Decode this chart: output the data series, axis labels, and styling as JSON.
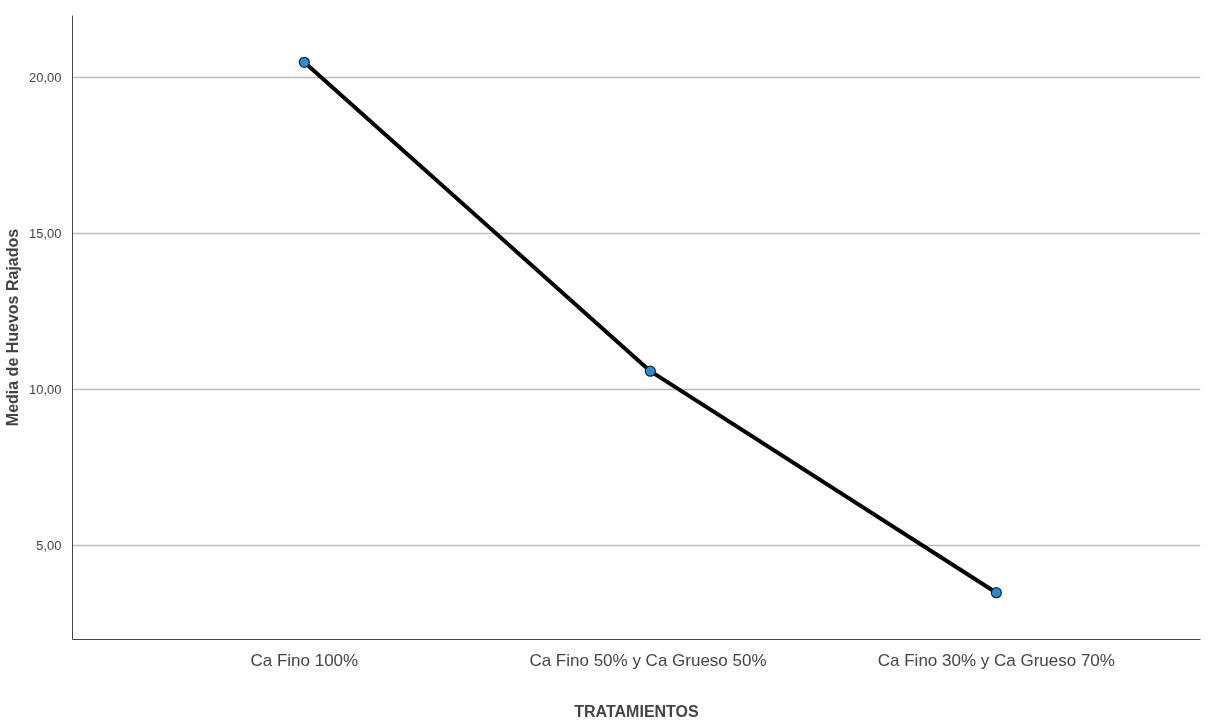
{
  "chart_data": {
    "type": "line",
    "xlabel": "TRATAMIENTOS",
    "ylabel": "Media de Huevos Rajados",
    "categories": [
      "Ca Fino 100%",
      "Ca Fino 50% y  Ca Grueso 50%",
      "Ca Fino 30% y Ca Grueso 70%"
    ],
    "series": [
      {
        "color": "#000000",
        "values": [
          20.5,
          10.6,
          3.5
        ]
      }
    ],
    "ylim": [
      2,
      22
    ],
    "yticks": [
      {
        "value": 5,
        "label": "5,00"
      },
      {
        "value": 10,
        "label": "10,00"
      },
      {
        "value": 15,
        "label": "15,00"
      },
      {
        "value": 20,
        "label": "20,00"
      }
    ],
    "grid": "y",
    "marker": "circle",
    "line_style": "solid"
  }
}
